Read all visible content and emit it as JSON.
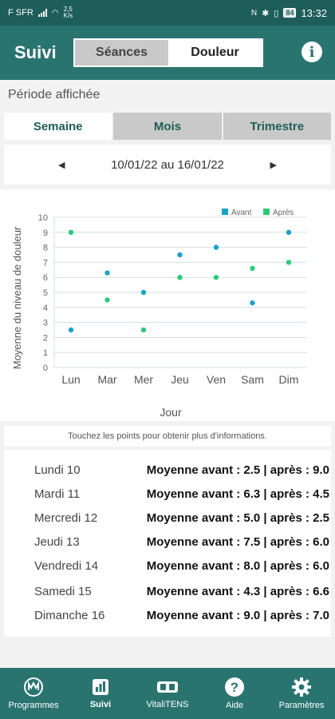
{
  "status_bar": {
    "carrier": "F SFR",
    "speed": "2,5\nK/s",
    "speed_value": "2,5",
    "speed_unit": "K/s",
    "battery": "84",
    "time": "13:32"
  },
  "header": {
    "title": "Suivi",
    "tabs": [
      {
        "label": "Séances",
        "selected": false
      },
      {
        "label": "Douleur",
        "selected": true
      }
    ],
    "info_icon": "info-icon"
  },
  "period": {
    "label": "Période affichée",
    "tabs": [
      {
        "label": "Semaine",
        "selected": true
      },
      {
        "label": "Mois",
        "selected": false
      },
      {
        "label": "Trimestre",
        "selected": false
      }
    ],
    "range": "10/01/22 au 16/01/22"
  },
  "chart_data": {
    "type": "scatter",
    "categories": [
      "Lun",
      "Mar",
      "Mer",
      "Jeu",
      "Ven",
      "Sam",
      "Dim"
    ],
    "series": [
      {
        "name": "Avant",
        "color": "#1aa3c8",
        "values": [
          2.5,
          6.3,
          5.0,
          7.5,
          8.0,
          4.3,
          9.0
        ]
      },
      {
        "name": "Après",
        "color": "#2ec97a",
        "values": [
          9.0,
          4.5,
          2.5,
          6.0,
          6.0,
          6.6,
          7.0
        ]
      }
    ],
    "xlabel": "Jour",
    "ylabel": "Moyenne du niveau de douleur",
    "ylim": [
      0,
      10
    ],
    "yticks": [
      0,
      1,
      2,
      3,
      4,
      5,
      6,
      7,
      8,
      9,
      10
    ],
    "grid": true,
    "legend": "top-right"
  },
  "hint": "Touchez les points pour obtenir plus d'informations.",
  "details": [
    {
      "day": "Lundi 10",
      "summary": "Moyenne avant : 2.5 | après : 9.0"
    },
    {
      "day": "Mardi 11",
      "summary": "Moyenne avant : 6.3 | après : 4.5"
    },
    {
      "day": "Mercredi 12",
      "summary": "Moyenne avant : 5.0 | après : 2.5"
    },
    {
      "day": "Jeudi 13",
      "summary": "Moyenne avant : 7.5 | après : 6.0"
    },
    {
      "day": "Vendredi 14",
      "summary": "Moyenne avant : 8.0 | après : 6.0"
    },
    {
      "day": "Samedi 15",
      "summary": "Moyenne avant : 4.3 | après : 6.6"
    },
    {
      "day": "Dimanche 16",
      "summary": "Moyenne avant : 9.0 | après : 7.0"
    }
  ],
  "nav": [
    {
      "label": "Programmes",
      "icon": "programs-icon",
      "active": false
    },
    {
      "label": "Suivi",
      "icon": "chart-icon",
      "active": true
    },
    {
      "label": "VitaliTENS",
      "icon": "device-icon",
      "active": false
    },
    {
      "label": "Aide",
      "icon": "help-icon",
      "active": false
    },
    {
      "label": "Paramètres",
      "icon": "gear-icon",
      "active": false
    }
  ],
  "colors": {
    "header": "#2a7470",
    "status": "#1e5e5a",
    "avant": "#1aa3c8",
    "apres": "#2ec97a"
  }
}
